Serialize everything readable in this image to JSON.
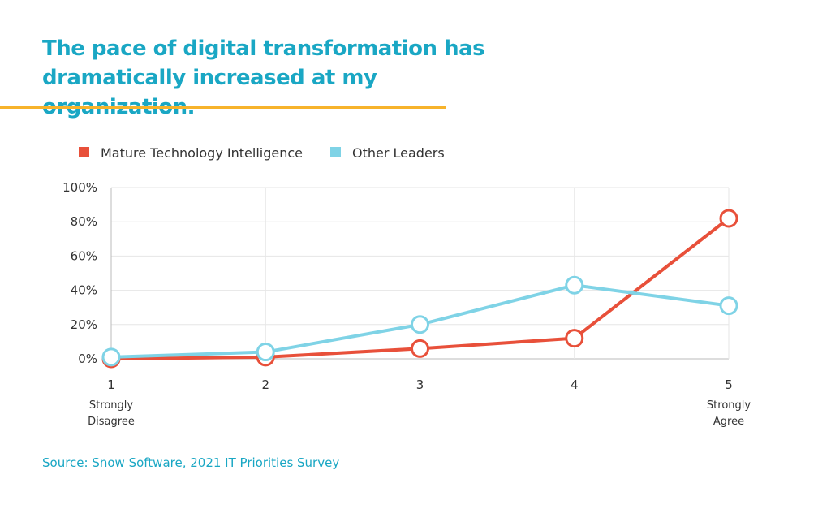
{
  "title": "The pace of digital transformation has dramatically increased at my organization.",
  "source": "Source: Snow Software, 2021 IT Priorities Survey",
  "colors": {
    "title": "#1aa7c4",
    "rule": "#f7b32b",
    "source": "#1aa7c4",
    "grid": "#e6e6e6",
    "axis": "#bbbbbb"
  },
  "chart_data": {
    "type": "line",
    "title": "The pace of digital transformation has dramatically increased at my organization.",
    "x": [
      1,
      2,
      3,
      4,
      5
    ],
    "x_tick_labels": [
      "1",
      "2",
      "3",
      "4",
      "5"
    ],
    "x_sub_labels": [
      [
        "Strongly",
        "Disagree"
      ],
      [],
      [],
      [],
      [
        "Strongly",
        "Agree"
      ]
    ],
    "y_ticks": [
      0,
      20,
      40,
      60,
      80,
      100
    ],
    "y_tick_labels": [
      "0%",
      "20%",
      "40%",
      "60%",
      "80%",
      "100%"
    ],
    "ylim": [
      0,
      100
    ],
    "grid": true,
    "legend_position": "top-left",
    "series": [
      {
        "name": "Mature Technology Intelligence",
        "color": "#e8503a",
        "values": [
          0,
          1,
          6,
          12,
          82
        ]
      },
      {
        "name": "Other Leaders",
        "color": "#7fd3e6",
        "values": [
          1,
          4,
          20,
          43,
          31
        ]
      }
    ]
  }
}
